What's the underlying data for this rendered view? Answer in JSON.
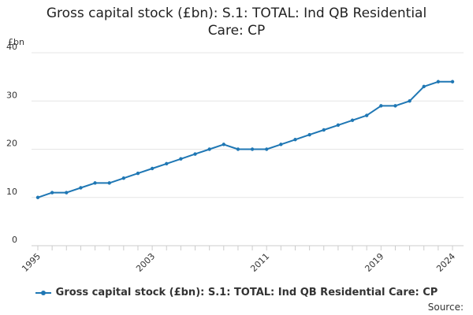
{
  "title_line1": "Gross capital stock (£bn): S.1: TOTAL: Ind QB Residential",
  "title_line2": "Care: CP",
  "source_label": "Source:",
  "chart_data": {
    "type": "line",
    "title": "Gross capital stock (£bn): S.1: TOTAL: Ind QB Residential Care: CP",
    "ylabel": "£bn",
    "ylim": [
      0,
      40
    ],
    "yticks": [
      0,
      10,
      20,
      30,
      40
    ],
    "xlim": [
      1995,
      2024
    ],
    "xticks": [
      "1995",
      "2003",
      "2011",
      "2019",
      "2024"
    ],
    "grid": true,
    "legend_position": "bottom",
    "accent_color": "#1f77b4",
    "x": [
      1995,
      1996,
      1997,
      1998,
      1999,
      2000,
      2001,
      2002,
      2003,
      2004,
      2005,
      2006,
      2007,
      2008,
      2009,
      2010,
      2011,
      2012,
      2013,
      2014,
      2015,
      2016,
      2017,
      2018,
      2019,
      2020,
      2021,
      2022,
      2023,
      2024
    ],
    "series": [
      {
        "name": "Gross capital stock (£bn): S.1: TOTAL: Ind QB Residential Care: CP",
        "values": [
          10,
          11,
          11,
          12,
          13,
          13,
          14,
          15,
          16,
          17,
          18,
          19,
          20,
          21,
          20,
          20,
          20,
          21,
          22,
          23,
          24,
          25,
          26,
          27,
          29,
          29,
          30,
          33,
          34,
          34
        ]
      }
    ]
  }
}
